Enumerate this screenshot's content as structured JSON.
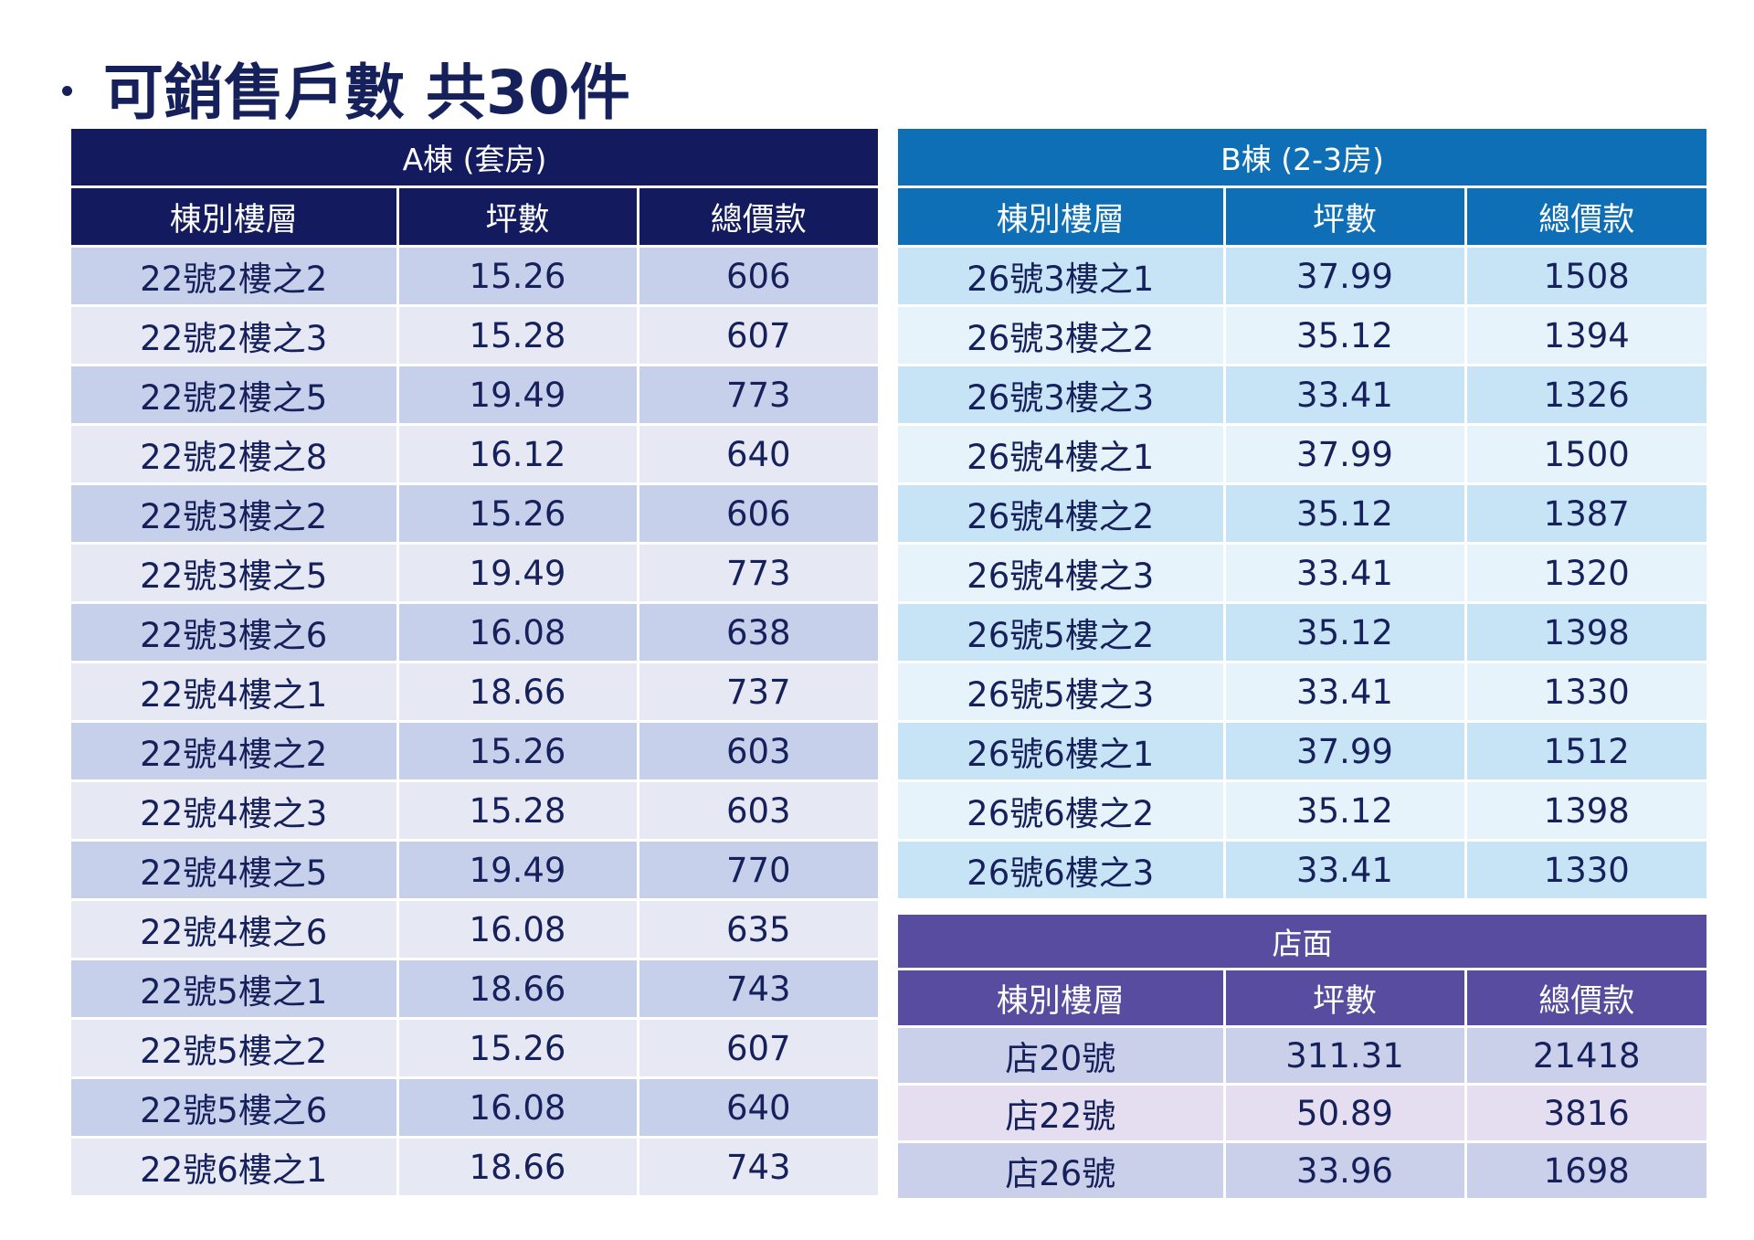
{
  "title": "可銷售戶數 共30件",
  "columns": [
    "棟別樓層",
    "坪數",
    "總價款"
  ],
  "colors": {
    "title": "#16215b",
    "a_header": "#131a5e",
    "b_header": "#0e6fb7",
    "shop_header": "#574c9f"
  },
  "table_a": {
    "heading": "A棟 (套房)",
    "rows": [
      [
        "22號2樓之2",
        "15.26",
        "606"
      ],
      [
        "22號2樓之3",
        "15.28",
        "607"
      ],
      [
        "22號2樓之5",
        "19.49",
        "773"
      ],
      [
        "22號2樓之8",
        "16.12",
        "640"
      ],
      [
        "22號3樓之2",
        "15.26",
        "606"
      ],
      [
        "22號3樓之5",
        "19.49",
        "773"
      ],
      [
        "22號3樓之6",
        "16.08",
        "638"
      ],
      [
        "22號4樓之1",
        "18.66",
        "737"
      ],
      [
        "22號4樓之2",
        "15.26",
        "603"
      ],
      [
        "22號4樓之3",
        "15.28",
        "603"
      ],
      [
        "22號4樓之5",
        "19.49",
        "770"
      ],
      [
        "22號4樓之6",
        "16.08",
        "635"
      ],
      [
        "22號5樓之1",
        "18.66",
        "743"
      ],
      [
        "22號5樓之2",
        "15.26",
        "607"
      ],
      [
        "22號5樓之6",
        "16.08",
        "640"
      ],
      [
        "22號6樓之1",
        "18.66",
        "743"
      ]
    ]
  },
  "table_b": {
    "heading": "B棟 (2-3房)",
    "rows": [
      [
        "26號3樓之1",
        "37.99",
        "1508"
      ],
      [
        "26號3樓之2",
        "35.12",
        "1394"
      ],
      [
        "26號3樓之3",
        "33.41",
        "1326"
      ],
      [
        "26號4樓之1",
        "37.99",
        "1500"
      ],
      [
        "26號4樓之2",
        "35.12",
        "1387"
      ],
      [
        "26號4樓之3",
        "33.41",
        "1320"
      ],
      [
        "26號5樓之2",
        "35.12",
        "1398"
      ],
      [
        "26號5樓之3",
        "33.41",
        "1330"
      ],
      [
        "26號6樓之1",
        "37.99",
        "1512"
      ],
      [
        "26號6樓之2",
        "35.12",
        "1398"
      ],
      [
        "26號6樓之3",
        "33.41",
        "1330"
      ]
    ]
  },
  "table_shop": {
    "heading": "店面",
    "rows": [
      [
        "店20號",
        "311.31",
        "21418"
      ],
      [
        "店22號",
        "50.89",
        "3816"
      ],
      [
        "店26號",
        "33.96",
        "1698"
      ]
    ]
  }
}
